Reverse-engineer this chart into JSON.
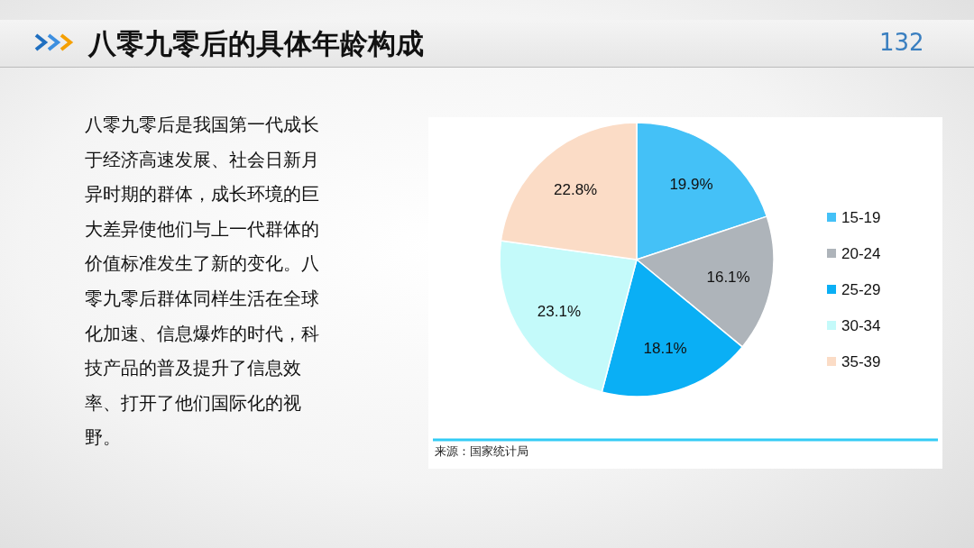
{
  "chart_data": {
    "type": "pie",
    "title": "八零九零后的具体年龄构成",
    "categories": [
      "15-19",
      "20-24",
      "25-29",
      "30-34",
      "35-39"
    ],
    "values": [
      19.9,
      16.1,
      18.1,
      23.1,
      22.8
    ],
    "colors": [
      "#44c1f7",
      "#aeb4ba",
      "#0aaff5",
      "#c4fafa",
      "#fbdcc6"
    ],
    "value_labels": [
      "19.9%",
      "16.1%",
      "18.1%",
      "23.1%",
      "22.8%"
    ],
    "legend": "right",
    "annotations": [
      "132",
      "八零九零后是我国第一代成长于经济高速发展、社会日新月异时期的群体，成长环境的巨大差异使他们与上一代群体的价值标准发生了新的变化。八零九零后群体同样生活在全球化加速、信息爆炸的时代，科技产品的普及提升了信息效率、打开了他们国际化的视野。",
      "来源：国家统计局"
    ]
  }
}
